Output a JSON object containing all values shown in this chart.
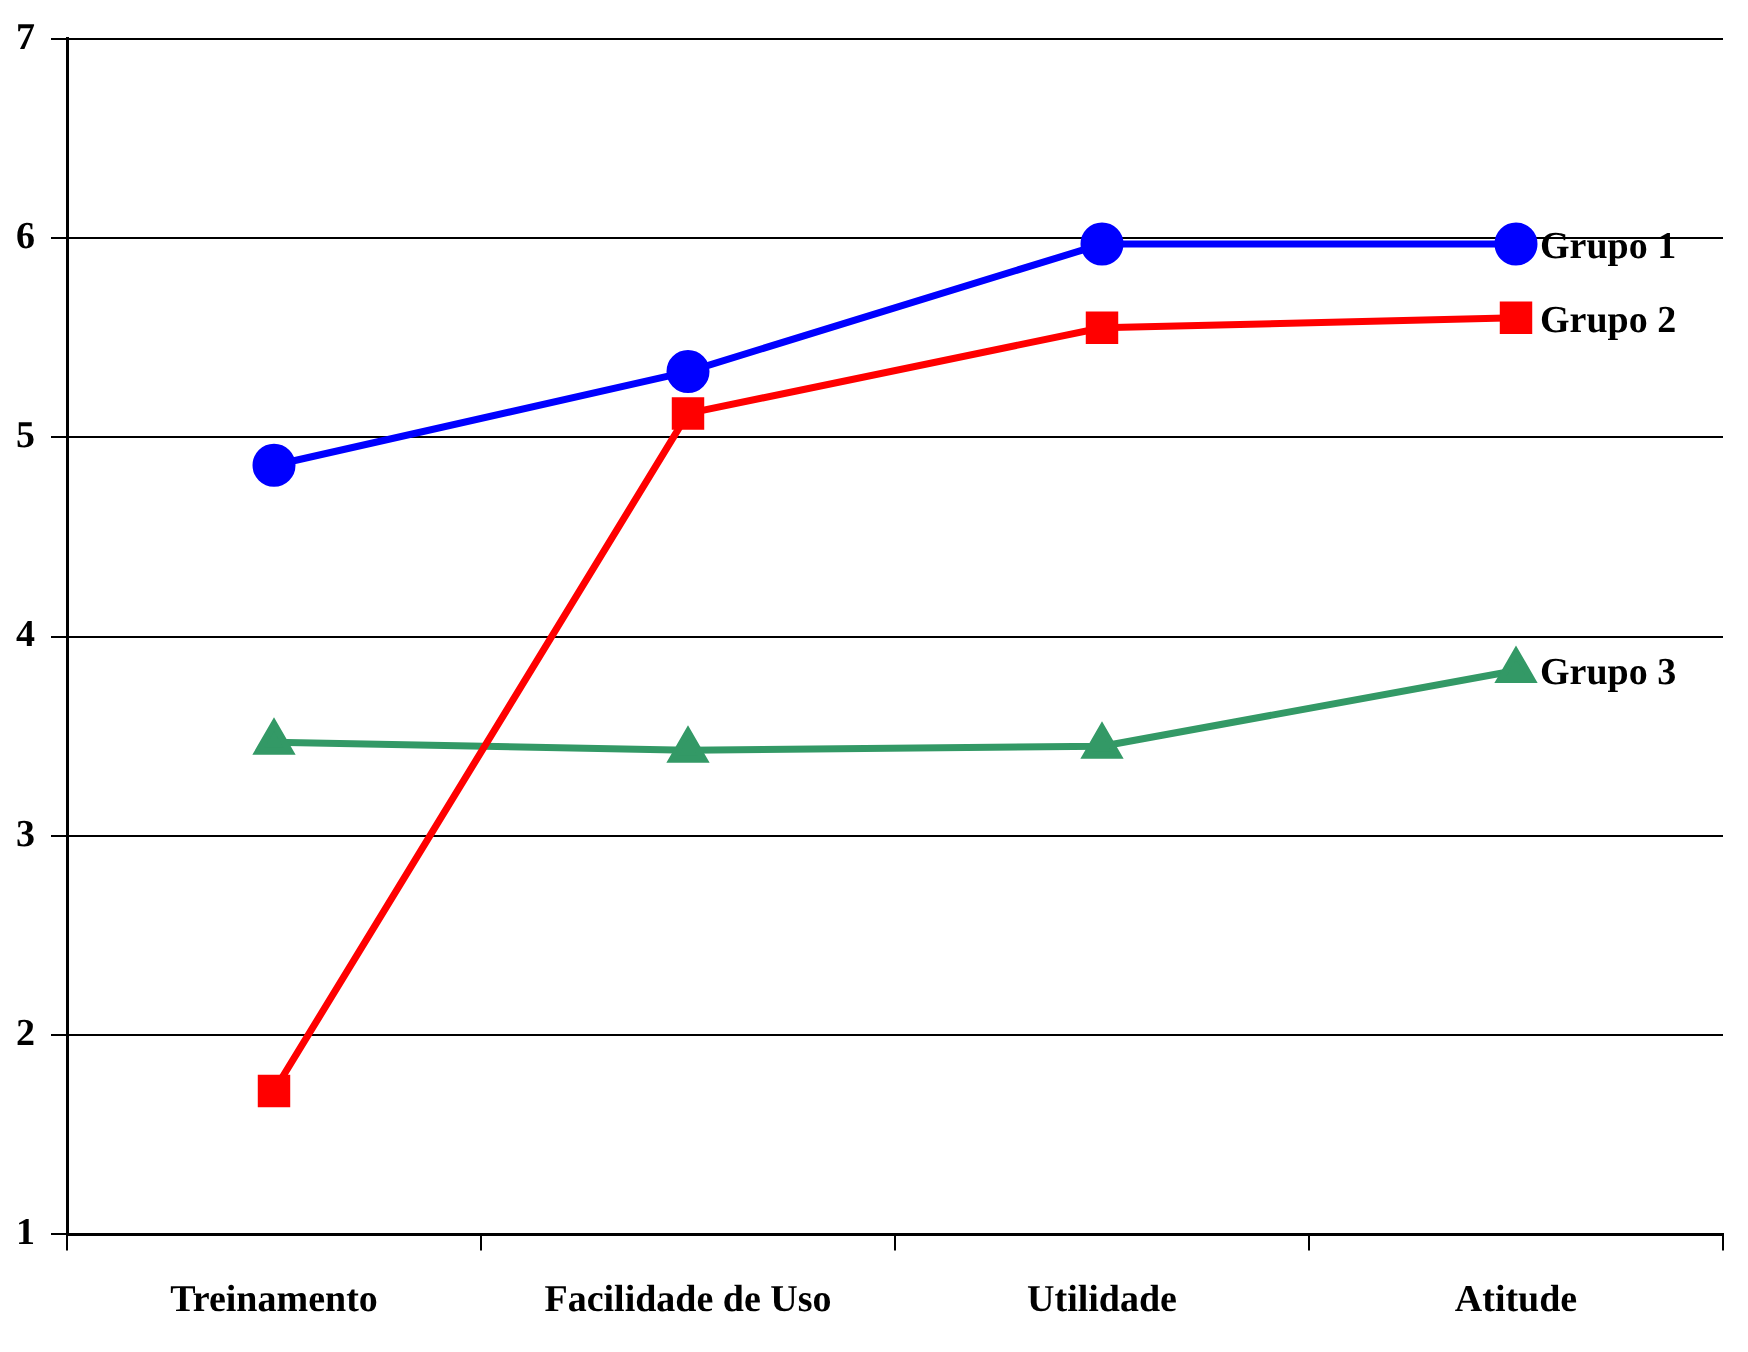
{
  "chart_data": {
    "type": "line",
    "categories": [
      "Treinamento",
      "Facilidade de Uso",
      "Utilidade",
      "Atitude"
    ],
    "series": [
      {
        "name": "Grupo 1",
        "color": "#0000ff",
        "marker": "circle",
        "values": [
          4.86,
          5.33,
          5.97,
          5.97
        ]
      },
      {
        "name": "Grupo 2",
        "color": "#ff0000",
        "marker": "square",
        "values": [
          1.72,
          5.12,
          5.55,
          5.6
        ]
      },
      {
        "name": "Grupo 3",
        "color": "#339966",
        "marker": "triangle",
        "values": [
          3.47,
          3.43,
          3.45,
          3.83
        ]
      }
    ],
    "ylim": [
      1,
      7
    ],
    "yticks": [
      1,
      2,
      3,
      4,
      5,
      6,
      7
    ],
    "grid": "y",
    "legend": false
  }
}
